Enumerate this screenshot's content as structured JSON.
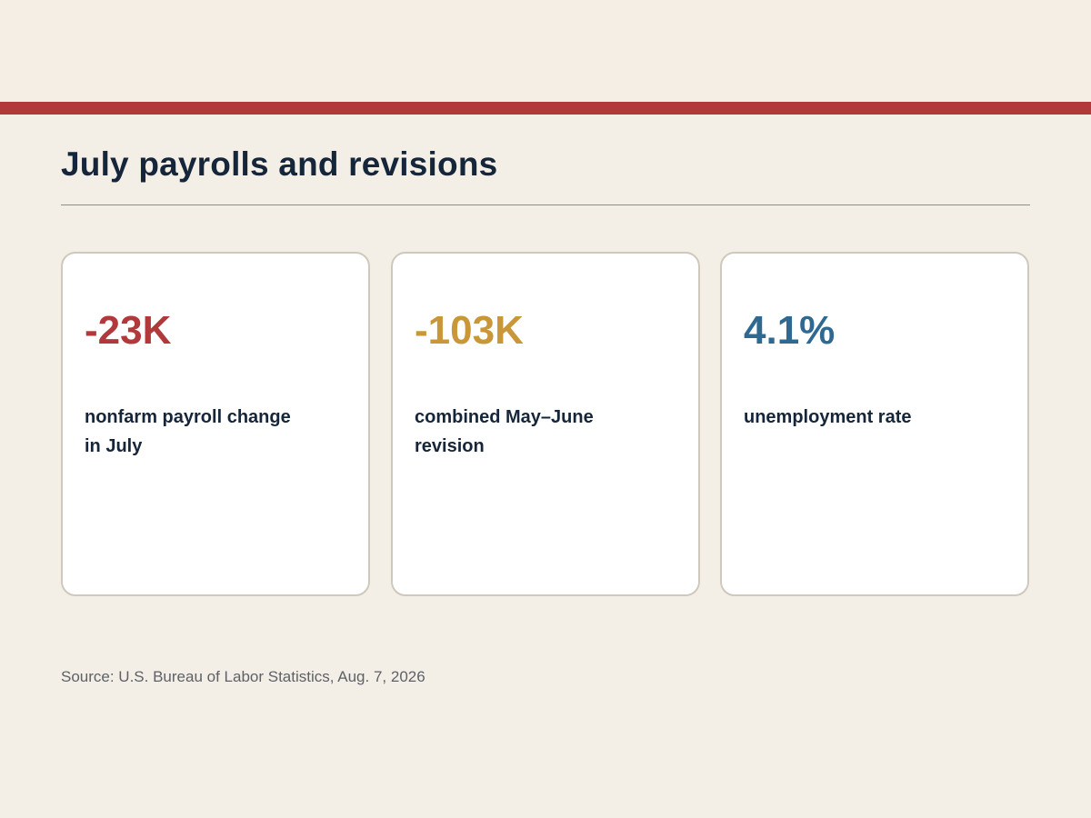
{
  "colors": {
    "accent_bar": "#b2393b",
    "negative_red": "#b2393b",
    "revision_gold": "#c99638",
    "rate_blue": "#2f6891"
  },
  "page": {
    "title": "July payrolls and revisions",
    "source": "Source: U.S. Bureau of Labor Statistics, Aug. 7, 2026"
  },
  "cards": [
    {
      "value": "-23K",
      "label": "nonfarm payroll change in July",
      "color": "#b2393b"
    },
    {
      "value": "-103K",
      "label": "combined May–June revision",
      "color": "#c99638"
    },
    {
      "value": "4.1%",
      "label": "unemployment rate",
      "color": "#2f6891"
    }
  ]
}
